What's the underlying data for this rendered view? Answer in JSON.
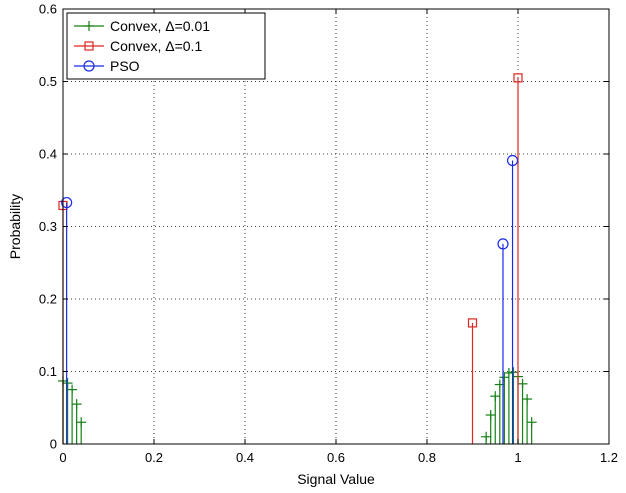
{
  "chart_data": {
    "type": "stem",
    "xlabel": "Signal Value",
    "ylabel": "Probability",
    "xlim": [
      0,
      1.2
    ],
    "ylim": [
      0,
      0.6
    ],
    "xticks": [
      "0",
      "0.2",
      "0.4",
      "0.6",
      "0.8",
      "1",
      "1.2"
    ],
    "yticks": [
      "0",
      "0.1",
      "0.2",
      "0.3",
      "0.4",
      "0.5",
      "0.6"
    ],
    "grid": "dotted",
    "legend_position": "top-left",
    "series": [
      {
        "name": "Convex, Δ=0.01",
        "color": "#138013",
        "marker": "plus",
        "points": [
          {
            "x": 0.0,
            "y": 0.087
          },
          {
            "x": 0.01,
            "y": 0.084
          },
          {
            "x": 0.02,
            "y": 0.075
          },
          {
            "x": 0.03,
            "y": 0.055
          },
          {
            "x": 0.04,
            "y": 0.03
          },
          {
            "x": 0.93,
            "y": 0.01
          },
          {
            "x": 0.94,
            "y": 0.04
          },
          {
            "x": 0.95,
            "y": 0.066
          },
          {
            "x": 0.96,
            "y": 0.082
          },
          {
            "x": 0.97,
            "y": 0.092
          },
          {
            "x": 0.98,
            "y": 0.098
          },
          {
            "x": 0.99,
            "y": 0.099
          },
          {
            "x": 1.0,
            "y": 0.093
          },
          {
            "x": 1.01,
            "y": 0.083
          },
          {
            "x": 1.02,
            "y": 0.062
          },
          {
            "x": 1.03,
            "y": 0.03
          }
        ]
      },
      {
        "name": "Convex, Δ=0.1",
        "color": "#e0241f",
        "marker": "square",
        "points": [
          {
            "x": 0.0,
            "y": 0.329
          },
          {
            "x": 0.9,
            "y": 0.167
          },
          {
            "x": 1.0,
            "y": 0.505
          }
        ]
      },
      {
        "name": "PSO",
        "color": "#1a2be8",
        "marker": "circle",
        "points": [
          {
            "x": 0.008,
            "y": 0.333
          },
          {
            "x": 0.967,
            "y": 0.276
          },
          {
            "x": 0.988,
            "y": 0.391
          }
        ]
      }
    ]
  }
}
